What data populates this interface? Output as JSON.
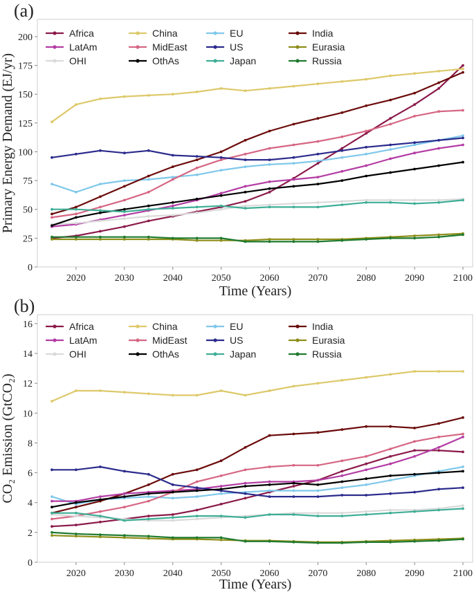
{
  "chart_data": [
    {
      "type": "line",
      "panel_label": "(a)",
      "xlabel": "Time (Years)",
      "ylabel": "Primary Energy Demand (EJ/yr)",
      "xlim": [
        2012,
        2102
      ],
      "ylim": [
        0,
        215
      ],
      "xticks": [
        2020,
        2030,
        2040,
        2050,
        2060,
        2070,
        2080,
        2090,
        2100
      ],
      "yticks": [
        0,
        25,
        50,
        75,
        100,
        125,
        150,
        175,
        200
      ],
      "legend_position": "top, 4 columns",
      "grid": false,
      "x": [
        2015,
        2020,
        2025,
        2030,
        2035,
        2040,
        2045,
        2050,
        2055,
        2060,
        2065,
        2070,
        2075,
        2080,
        2085,
        2090,
        2095,
        2100
      ],
      "series": [
        {
          "name": "Africa",
          "color": "#8b1a4a",
          "values": [
            25,
            27,
            31,
            35,
            40,
            44,
            48,
            52,
            57,
            65,
            77,
            90,
            103,
            116,
            129,
            141,
            155,
            175
          ]
        },
        {
          "name": "China",
          "color": "#ddc96a",
          "values": [
            126,
            141,
            146,
            148,
            149,
            150,
            152,
            155,
            153,
            155,
            157,
            159,
            161,
            163,
            166,
            168,
            170,
            172
          ]
        },
        {
          "name": "EU",
          "color": "#7fc8ea",
          "values": [
            72,
            65,
            72,
            75,
            76,
            78,
            80,
            84,
            87,
            89,
            90,
            92,
            95,
            98,
            102,
            106,
            110,
            114
          ]
        },
        {
          "name": "India",
          "color": "#6b0a0a",
          "values": [
            46,
            52,
            61,
            70,
            79,
            87,
            93,
            100,
            110,
            118,
            124,
            129,
            134,
            140,
            145,
            151,
            160,
            169
          ]
        },
        {
          "name": "LatAm",
          "color": "#b33ca4",
          "values": [
            35,
            37,
            41,
            45,
            49,
            53,
            58,
            64,
            70,
            74,
            76,
            78,
            83,
            88,
            94,
            99,
            103,
            106
          ]
        },
        {
          "name": "MidEast",
          "color": "#d66683",
          "values": [
            43,
            46,
            52,
            58,
            65,
            76,
            86,
            93,
            98,
            103,
            106,
            109,
            113,
            118,
            124,
            131,
            135,
            136
          ]
        },
        {
          "name": "US",
          "color": "#2a2a8c",
          "values": [
            95,
            98,
            101,
            99,
            101,
            97,
            96,
            95,
            93,
            93,
            95,
            98,
            101,
            104,
            106,
            108,
            110,
            112
          ]
        },
        {
          "name": "Eurasia",
          "color": "#8e8e1a",
          "values": [
            24,
            24,
            24,
            24,
            24,
            24,
            23,
            23,
            23,
            24,
            24,
            24,
            24,
            25,
            26,
            27,
            28,
            29
          ]
        },
        {
          "name": "OHI",
          "color": "#dadada",
          "values": [
            37,
            38,
            40,
            42,
            44,
            45,
            47,
            50,
            53,
            54,
            55,
            56,
            57,
            58,
            58,
            58,
            58,
            59
          ]
        },
        {
          "name": "OthAs",
          "color": "#000000",
          "values": [
            36,
            43,
            47,
            50,
            53,
            56,
            59,
            62,
            65,
            68,
            70,
            72,
            75,
            79,
            82,
            85,
            88,
            91
          ]
        },
        {
          "name": "Japan",
          "color": "#3eae96",
          "values": [
            50,
            50,
            49,
            48,
            50,
            51,
            52,
            53,
            51,
            52,
            52,
            52,
            54,
            56,
            56,
            55,
            56,
            58
          ]
        },
        {
          "name": "Russia",
          "color": "#1f7a2e",
          "values": [
            26,
            26,
            26,
            26,
            26,
            25,
            25,
            25,
            22,
            22,
            22,
            22,
            23,
            24,
            25,
            25,
            26,
            28
          ]
        }
      ]
    },
    {
      "type": "line",
      "panel_label": "(b)",
      "xlabel": "Time (Years)",
      "ylabel": "CO₂ Emission (GtCO₂)",
      "xlim": [
        2012,
        2102
      ],
      "ylim": [
        0,
        16.6
      ],
      "xticks": [
        2020,
        2030,
        2040,
        2050,
        2060,
        2070,
        2080,
        2090,
        2100
      ],
      "yticks": [
        0,
        2,
        4,
        6,
        8,
        10,
        12,
        14,
        16
      ],
      "legend_position": "top, 4 columns",
      "grid": false,
      "x": [
        2015,
        2020,
        2025,
        2030,
        2035,
        2040,
        2045,
        2050,
        2055,
        2060,
        2065,
        2070,
        2075,
        2080,
        2085,
        2090,
        2095,
        2100
      ],
      "series": [
        {
          "name": "Africa",
          "color": "#8b1a4a",
          "values": [
            2.4,
            2.5,
            2.7,
            2.9,
            3.1,
            3.2,
            3.5,
            3.9,
            4.3,
            4.7,
            5.1,
            5.5,
            6.1,
            6.6,
            7.1,
            7.5,
            7.5,
            7.4
          ]
        },
        {
          "name": "China",
          "color": "#ddc96a",
          "values": [
            10.8,
            11.5,
            11.5,
            11.4,
            11.3,
            11.2,
            11.2,
            11.5,
            11.2,
            11.5,
            11.8,
            12.0,
            12.2,
            12.4,
            12.6,
            12.8,
            12.8,
            12.8
          ]
        },
        {
          "name": "EU",
          "color": "#7fc8ea",
          "values": [
            4.4,
            3.9,
            4.2,
            4.3,
            4.4,
            4.3,
            4.4,
            4.6,
            4.7,
            4.8,
            4.8,
            4.8,
            5.0,
            5.2,
            5.5,
            5.8,
            6.1,
            6.4
          ]
        },
        {
          "name": "India",
          "color": "#6b0a0a",
          "values": [
            3.3,
            3.7,
            4.1,
            4.6,
            5.2,
            5.9,
            6.2,
            6.8,
            7.7,
            8.5,
            8.6,
            8.7,
            8.9,
            9.1,
            9.1,
            9.0,
            9.3,
            9.7
          ]
        },
        {
          "name": "LatAm",
          "color": "#b33ca4",
          "values": [
            4.1,
            4.1,
            4.4,
            4.6,
            4.7,
            4.8,
            4.9,
            5.1,
            5.3,
            5.4,
            5.4,
            5.5,
            5.8,
            6.2,
            6.6,
            7.1,
            7.7,
            8.4
          ]
        },
        {
          "name": "MidEast",
          "color": "#d66683",
          "values": [
            2.9,
            3.1,
            3.4,
            3.7,
            4.1,
            4.7,
            5.4,
            5.8,
            6.2,
            6.4,
            6.5,
            6.5,
            6.8,
            7.1,
            7.6,
            8.1,
            8.4,
            8.6
          ]
        },
        {
          "name": "US",
          "color": "#2a2a8c",
          "values": [
            6.2,
            6.2,
            6.4,
            6.1,
            5.9,
            5.2,
            5.0,
            4.8,
            4.6,
            4.4,
            4.4,
            4.4,
            4.5,
            4.5,
            4.6,
            4.7,
            4.9,
            5.0
          ]
        },
        {
          "name": "Eurasia",
          "color": "#8e8e1a",
          "values": [
            1.8,
            1.75,
            1.7,
            1.65,
            1.6,
            1.55,
            1.55,
            1.5,
            1.45,
            1.45,
            1.4,
            1.35,
            1.35,
            1.4,
            1.45,
            1.5,
            1.55,
            1.6
          ]
        },
        {
          "name": "OHI",
          "color": "#dadada",
          "values": [
            3.2,
            3.1,
            3.0,
            2.9,
            2.8,
            2.8,
            2.9,
            3.0,
            3.1,
            3.2,
            3.3,
            3.3,
            3.3,
            3.4,
            3.5,
            3.5,
            3.6,
            3.8
          ]
        },
        {
          "name": "OthAs",
          "color": "#000000",
          "values": [
            3.7,
            4.0,
            4.2,
            4.4,
            4.6,
            4.7,
            4.8,
            4.9,
            5.1,
            5.2,
            5.3,
            5.2,
            5.4,
            5.6,
            5.8,
            5.9,
            6.0,
            6.1
          ]
        },
        {
          "name": "Japan",
          "color": "#3eae96",
          "values": [
            3.3,
            3.3,
            3.1,
            2.8,
            2.9,
            3.0,
            3.1,
            3.1,
            3.0,
            3.2,
            3.2,
            3.1,
            3.1,
            3.2,
            3.3,
            3.4,
            3.5,
            3.6
          ]
        },
        {
          "name": "Russia",
          "color": "#1f7a2e",
          "values": [
            2.0,
            1.9,
            1.85,
            1.8,
            1.75,
            1.65,
            1.65,
            1.65,
            1.4,
            1.4,
            1.35,
            1.3,
            1.3,
            1.35,
            1.35,
            1.4,
            1.45,
            1.55
          ]
        }
      ]
    }
  ]
}
